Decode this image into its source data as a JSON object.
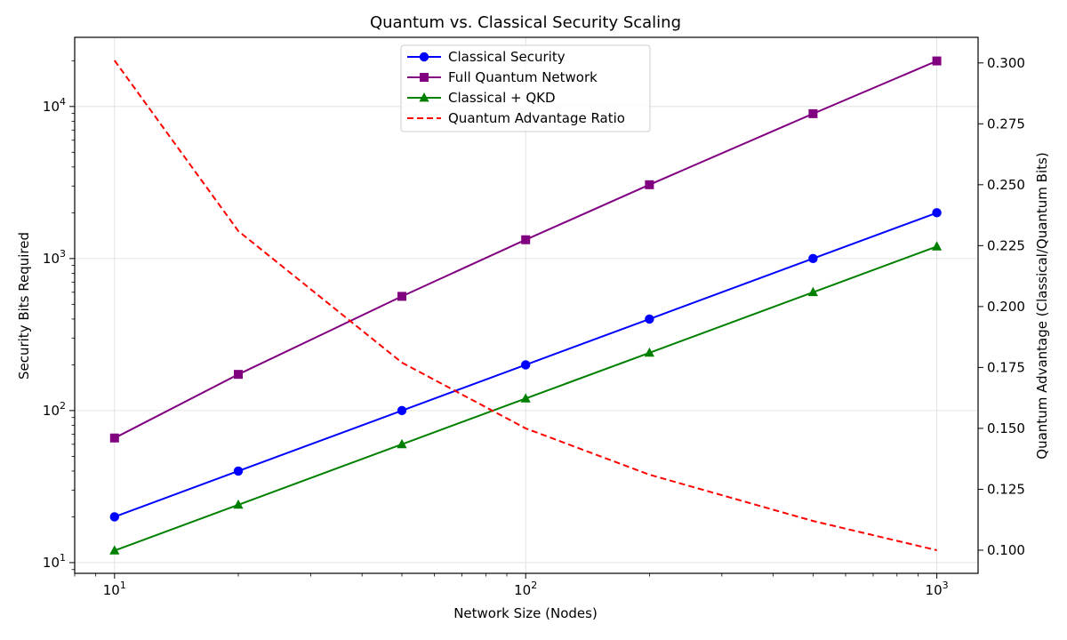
{
  "chart_data": {
    "type": "line",
    "title": "Quantum vs. Classical Security Scaling",
    "xlabel": "Network Size (Nodes)",
    "ylabel": "Security Bits Required",
    "y2label": "Quantum Advantage (Classical/Quantum Bits)",
    "x_scale": "log",
    "y_scale": "log",
    "xlim": [
      8,
      1260
    ],
    "ylim": [
      8.5,
      28500
    ],
    "y2lim": [
      0.0905,
      0.3105
    ],
    "x_ticks": [
      {
        "value": 10,
        "base": "10",
        "exp": "1"
      },
      {
        "value": 100,
        "base": "10",
        "exp": "2"
      },
      {
        "value": 1000,
        "base": "10",
        "exp": "3"
      }
    ],
    "y_ticks": [
      {
        "value": 10,
        "base": "10",
        "exp": "1"
      },
      {
        "value": 100,
        "base": "10",
        "exp": "2"
      },
      {
        "value": 1000,
        "base": "10",
        "exp": "3"
      },
      {
        "value": 10000,
        "base": "10",
        "exp": "4"
      }
    ],
    "y2_ticks": [
      "0.100",
      "0.125",
      "0.150",
      "0.175",
      "0.200",
      "0.225",
      "0.250",
      "0.275",
      "0.300"
    ],
    "x": [
      10,
      20,
      50,
      100,
      200,
      500,
      1000
    ],
    "grid": true,
    "legend_position": "top-center",
    "series": [
      {
        "name": "Classical Security",
        "axis": "left",
        "color": "#0000ff",
        "marker": "circle",
        "dashed": false,
        "values": [
          20,
          40,
          100,
          200,
          400,
          1000,
          2000
        ]
      },
      {
        "name": "Full Quantum Network",
        "axis": "left",
        "color": "#800080",
        "marker": "square",
        "dashed": false,
        "values": [
          66,
          173,
          564,
          1329,
          3058,
          8966,
          19932
        ]
      },
      {
        "name": "Classical + QKD",
        "axis": "left",
        "color": "#008000",
        "marker": "triangle",
        "dashed": false,
        "values": [
          12,
          24,
          60,
          120,
          240,
          600,
          1200
        ]
      },
      {
        "name": "Quantum Advantage Ratio",
        "axis": "right",
        "color": "#ff0000",
        "marker": "none",
        "dashed": true,
        "values": [
          0.301,
          0.231,
          0.177,
          0.15,
          0.131,
          0.112,
          0.1
        ]
      }
    ]
  }
}
